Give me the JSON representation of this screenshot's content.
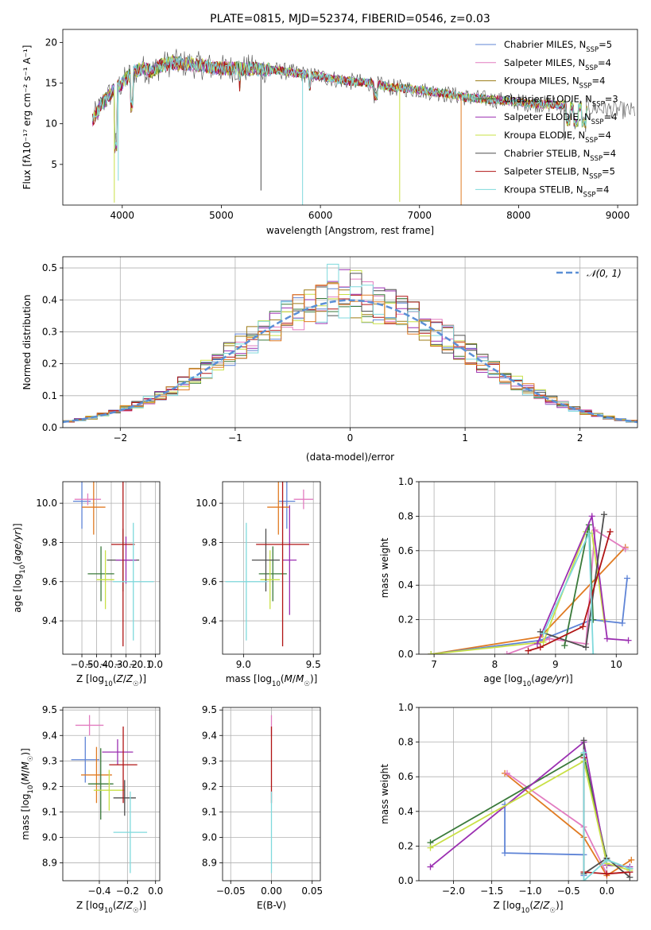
{
  "colors": {
    "cm_blue": "#5f84d6",
    "sm_pink": "#e27cc0",
    "km_olive": "#9c7b16",
    "ce_green": "#3a7a3a",
    "se_purple": "#9b2fb1",
    "ke_yellow": "#c9e046",
    "cs_gray": "#4f4f4f",
    "ss_red": "#b01414",
    "ks_cyan": "#7fd9dc",
    "orange": "#e07b23",
    "normal": "#5b8fd6",
    "grid": "#b0b0b0"
  },
  "chart_data": [
    {
      "id": "spectrum",
      "type": "line",
      "title": "PLATE=0815, MJD=52374, FIBERID=0546, z=0.03",
      "xlabel": "wavelength [Angstrom, rest frame]",
      "ylabel": "Flux [fλ10⁻¹⁷ erg cm⁻² s⁻¹ A⁻¹]",
      "xlim": [
        3400,
        9200
      ],
      "ylim": [
        0,
        21.6
      ],
      "xticks": [
        4000,
        5000,
        6000,
        7000,
        8000,
        9000
      ],
      "yticks": [
        5,
        10,
        15,
        20
      ],
      "grid": false,
      "legend_position": "top-right",
      "continuum": {
        "x": [
          3700,
          3800,
          3900,
          4000,
          4100,
          4200,
          4300,
          4400,
          4500,
          4700,
          5000,
          5300,
          5600,
          5900,
          6100,
          6300,
          6500,
          6700,
          6900,
          7100,
          7300,
          7500,
          7700,
          7900,
          8100,
          8300,
          8500,
          8700,
          8900,
          9100
        ],
        "y": [
          10.5,
          12.5,
          14.0,
          15.0,
          16.3,
          16.8,
          16.5,
          17.2,
          17.5,
          17.3,
          16.8,
          16.8,
          16.5,
          16.0,
          15.6,
          15.2,
          15.0,
          14.5,
          14.3,
          14.0,
          13.6,
          13.2,
          13.0,
          12.8,
          12.5,
          12.4,
          12.2,
          12.0,
          11.8,
          11.6
        ]
      },
      "series": [
        {
          "name": "Chabrier MILES, N",
          "sub": "SSP",
          "tail": "=5",
          "color": "#5f84d6"
        },
        {
          "name": "Salpeter MILES, N",
          "sub": "SSP",
          "tail": "=4",
          "color": "#e27cc0"
        },
        {
          "name": "Kroupa MILES, N",
          "sub": "SSP",
          "tail": "=4",
          "color": "#9c7b16"
        },
        {
          "name": "Chabrier ELODIE, N",
          "sub": "SSP",
          "tail": "=3",
          "color": "#3a7a3a"
        },
        {
          "name": "Salpeter ELODIE, N",
          "sub": "SSP",
          "tail": "=4",
          "color": "#9b2fb1"
        },
        {
          "name": "Kroupa ELODIE, N",
          "sub": "SSP",
          "tail": "=4",
          "color": "#c9e046"
        },
        {
          "name": "Chabrier STELIB, N",
          "sub": "SSP",
          "tail": "=4",
          "color": "#4f4f4f"
        },
        {
          "name": "Salpeter STELIB, N",
          "sub": "SSP",
          "tail": "=5",
          "color": "#b01414"
        },
        {
          "name": "Kroupa STELIB, N",
          "sub": "SSP",
          "tail": "=4",
          "color": "#7fd9dc"
        }
      ]
    },
    {
      "id": "residuals",
      "type": "line",
      "xlabel": "(data-model)/error",
      "ylabel": "Normed distribution",
      "xlim": [
        -2.5,
        2.5
      ],
      "ylim": [
        0,
        0.535
      ],
      "xticks": [
        -2,
        -1,
        0,
        1,
        2
      ],
      "yticks": [
        0.0,
        0.1,
        0.2,
        0.3,
        0.4,
        0.5
      ],
      "grid": true,
      "legend_position": "top-right",
      "normal_label": "𝒩(0, 1)",
      "bin_width": 0.1
    },
    {
      "id": "age_vs_Z",
      "type": "scatter",
      "xlabel": "Z [log10(Z/Z☉)]",
      "ylabel": "age [log10(age/yr)]",
      "xlim": [
        -0.63,
        0.03
      ],
      "ylim": [
        9.23,
        10.11
      ],
      "xticks": [
        -0.5,
        -0.4,
        -0.3,
        -0.2,
        -0.1,
        0.0
      ],
      "yticks": [
        9.4,
        9.6,
        9.8,
        10.0
      ],
      "grid": true,
      "points": [
        {
          "x": -0.5,
          "y": 10.01,
          "xerr": 0.06,
          "yerr": 0.14,
          "color": "#5f84d6"
        },
        {
          "x": -0.46,
          "y": 10.02,
          "xerr": 0.09,
          "yerr": 0.03,
          "color": "#e27cc0"
        },
        {
          "x": -0.42,
          "y": 9.98,
          "xerr": 0.08,
          "yerr": 0.14,
          "color": "#e07b23"
        },
        {
          "x": -0.37,
          "y": 9.64,
          "xerr": 0.09,
          "yerr": 0.14,
          "color": "#3a7a3a"
        },
        {
          "x": -0.34,
          "y": 9.61,
          "xerr": 0.06,
          "yerr": 0.15,
          "color": "#c9e046"
        },
        {
          "x": -0.22,
          "y": 9.71,
          "xerr": 0.11,
          "yerr": 0.16,
          "color": "#4f4f4f"
        },
        {
          "x": -0.2,
          "y": 9.71,
          "xerr": 0.07,
          "yerr": 0.12,
          "color": "#9b2fb1"
        },
        {
          "x": -0.22,
          "y": 9.79,
          "xerr": 0.08,
          "yerr": 0.52,
          "color": "#b01414"
        },
        {
          "x": -0.15,
          "y": 9.6,
          "xerr": 0.14,
          "yerr": 0.3,
          "color": "#7fd9dc"
        }
      ]
    },
    {
      "id": "age_vs_mass",
      "type": "scatter",
      "xlabel": "mass [log10(M/M☉)]",
      "ylabel": "",
      "xlim": [
        8.85,
        9.55
      ],
      "ylim": [
        9.23,
        10.11
      ],
      "xticks": [
        9.0,
        9.5
      ],
      "yticks": [
        9.4,
        9.6,
        9.8,
        10.0
      ],
      "grid": true,
      "points": [
        {
          "x": 9.31,
          "y": 10.01,
          "xerr": 0.06,
          "yerr": 0.14,
          "color": "#5f84d6"
        },
        {
          "x": 9.43,
          "y": 10.02,
          "xerr": 0.07,
          "yerr": 0.05,
          "color": "#e27cc0"
        },
        {
          "x": 9.25,
          "y": 9.98,
          "xerr": 0.08,
          "yerr": 0.14,
          "color": "#e07b23"
        },
        {
          "x": 9.21,
          "y": 9.64,
          "xerr": 0.1,
          "yerr": 0.14,
          "color": "#3a7a3a"
        },
        {
          "x": 9.19,
          "y": 9.61,
          "xerr": 0.07,
          "yerr": 0.15,
          "color": "#c9e046"
        },
        {
          "x": 9.16,
          "y": 9.71,
          "xerr": 0.1,
          "yerr": 0.16,
          "color": "#4f4f4f"
        },
        {
          "x": 9.33,
          "y": 9.71,
          "xerr": 0.05,
          "yerr": 0.28,
          "color": "#9b2fb1"
        },
        {
          "x": 9.28,
          "y": 9.79,
          "xerr": 0.19,
          "yerr": 0.52,
          "color": "#b01414"
        },
        {
          "x": 9.02,
          "y": 9.6,
          "xerr": 0.15,
          "yerr": 0.3,
          "color": "#7fd9dc"
        }
      ]
    },
    {
      "id": "weight_vs_age",
      "type": "line",
      "xlabel": "age  [log10(age/yr)]",
      "ylabel": "mass weight",
      "xlim": [
        6.75,
        10.35
      ],
      "ylim": [
        0,
        1.0
      ],
      "xticks": [
        7,
        8,
        9,
        10
      ],
      "yticks": [
        0.0,
        0.2,
        0.4,
        0.6,
        0.8,
        1.0
      ],
      "grid": true,
      "series": [
        {
          "color": "#e07b23",
          "x": [
            6.95,
            8.75,
            10.15
          ],
          "y": [
            0.0,
            0.1,
            0.62
          ]
        },
        {
          "color": "#5f84d6",
          "x": [
            6.95,
            8.75,
            9.6,
            10.1,
            10.18
          ],
          "y": [
            0.0,
            0.08,
            0.2,
            0.18,
            0.44
          ]
        },
        {
          "color": "#e27cc0",
          "x": [
            8.2,
            8.9,
            9.5,
            9.65,
            10.15
          ],
          "y": [
            0.0,
            0.09,
            0.06,
            0.72,
            0.61
          ]
        },
        {
          "color": "#c9e046",
          "x": [
            6.95,
            8.8,
            9.5,
            9.6,
            9.8
          ],
          "y": [
            0.0,
            0.07,
            0.71,
            0.7,
            0.2
          ]
        },
        {
          "color": "#3a7a3a",
          "x": [
            9.15,
            9.55,
            9.62
          ],
          "y": [
            0.05,
            0.75,
            0.2
          ]
        },
        {
          "color": "#9b2fb1",
          "x": [
            8.7,
            9.6,
            9.85,
            10.2
          ],
          "y": [
            0.06,
            0.8,
            0.09,
            0.08
          ]
        },
        {
          "color": "#4f4f4f",
          "x": [
            8.75,
            9.5,
            9.8
          ],
          "y": [
            0.13,
            0.04,
            0.81
          ]
        },
        {
          "color": "#b01414",
          "x": [
            8.55,
            8.75,
            9.45,
            9.9
          ],
          "y": [
            0.02,
            0.04,
            0.16,
            0.71
          ]
        },
        {
          "color": "#7fd9dc",
          "x": [
            8.8,
            9.55,
            9.62
          ],
          "y": [
            0.12,
            0.7,
            0.0
          ]
        }
      ]
    },
    {
      "id": "mass_vs_Z",
      "type": "scatter",
      "xlabel": "Z [log10(Z/Z☉)]",
      "ylabel": "mass [log10(M/M☉)]",
      "xlim": [
        -0.66,
        0.03
      ],
      "ylim": [
        8.83,
        9.51
      ],
      "xticks": [
        -0.4,
        -0.2,
        0.0
      ],
      "yticks": [
        8.9,
        9.0,
        9.1,
        9.2,
        9.3,
        9.4,
        9.5
      ],
      "grid": true,
      "points": [
        {
          "x": -0.5,
          "y": 9.305,
          "xerr": 0.1,
          "yerr": 0.09,
          "color": "#5f84d6"
        },
        {
          "x": -0.47,
          "y": 9.44,
          "xerr": 0.1,
          "yerr": 0.04,
          "color": "#e27cc0"
        },
        {
          "x": -0.42,
          "y": 9.245,
          "xerr": 0.11,
          "yerr": 0.11,
          "color": "#e07b23"
        },
        {
          "x": -0.39,
          "y": 9.21,
          "xerr": 0.09,
          "yerr": 0.14,
          "color": "#3a7a3a"
        },
        {
          "x": -0.33,
          "y": 9.185,
          "xerr": 0.11,
          "yerr": 0.08,
          "color": "#c9e046"
        },
        {
          "x": -0.27,
          "y": 9.335,
          "xerr": 0.11,
          "yerr": 0.05,
          "color": "#9b2fb1"
        },
        {
          "x": -0.22,
          "y": 9.155,
          "xerr": 0.08,
          "yerr": 0.07,
          "color": "#4f4f4f"
        },
        {
          "x": -0.23,
          "y": 9.285,
          "xerr": 0.1,
          "yerr": 0.15,
          "color": "#b01414"
        },
        {
          "x": -0.18,
          "y": 9.02,
          "xerr": 0.12,
          "yerr": 0.16,
          "color": "#7fd9dc"
        }
      ]
    },
    {
      "id": "mass_vs_ebv",
      "type": "scatter",
      "xlabel": "E(B-V)",
      "ylabel": "",
      "xlim": [
        -0.06,
        0.06
      ],
      "ylim": [
        8.83,
        9.51
      ],
      "xticks": [
        -0.05,
        0.0,
        0.05
      ],
      "yticks": [
        8.9,
        9.0,
        9.1,
        9.2,
        9.3,
        9.4,
        9.5
      ],
      "grid": true,
      "points": [
        {
          "x": 0.0,
          "y": 9.44,
          "xerr": 0.0,
          "yerr": 0.04,
          "color": "#e27cc0"
        },
        {
          "x": 0.0,
          "y": 9.285,
          "xerr": 0.0,
          "yerr": 0.15,
          "color": "#b01414"
        },
        {
          "x": 0.0,
          "y": 9.02,
          "xerr": 0.0,
          "yerr": 0.16,
          "color": "#7fd9dc"
        }
      ]
    },
    {
      "id": "weight_vs_Z",
      "type": "line",
      "xlabel": "Z [log10(Z/Z☉)]",
      "ylabel": "mass weight",
      "xlim": [
        -2.45,
        0.4
      ],
      "ylim": [
        0,
        1.0
      ],
      "xticks": [
        -2.0,
        -1.5,
        -1.0,
        -0.5,
        0.0
      ],
      "yticks": [
        0.0,
        0.2,
        0.4,
        0.6,
        0.8,
        1.0
      ],
      "grid": true,
      "series": [
        {
          "color": "#e07b23",
          "x": [
            -1.33,
            -0.3,
            0.0,
            0.32
          ],
          "y": [
            0.62,
            0.25,
            0.03,
            0.12
          ]
        },
        {
          "color": "#5f84d6",
          "x": [
            -1.33,
            -1.33,
            -0.3,
            -0.3
          ],
          "y": [
            0.44,
            0.16,
            0.15,
            0.03
          ]
        },
        {
          "color": "#e27cc0",
          "x": [
            -1.3,
            -0.3,
            0.0,
            0.3
          ],
          "y": [
            0.62,
            0.31,
            0.04,
            0.05
          ]
        },
        {
          "color": "#3a7a3a",
          "x": [
            -2.3,
            -0.3,
            0.0,
            0.3
          ],
          "y": [
            0.22,
            0.73,
            0.12,
            0.07
          ]
        },
        {
          "color": "#9b2fb1",
          "x": [
            -2.3,
            -0.3,
            0.0,
            0.3
          ],
          "y": [
            0.08,
            0.8,
            0.09,
            0.08
          ]
        },
        {
          "color": "#c9e046",
          "x": [
            -2.3,
            -0.3,
            0.0,
            0.3
          ],
          "y": [
            0.19,
            0.69,
            0.1,
            0.06
          ]
        },
        {
          "color": "#4f4f4f",
          "x": [
            -0.3,
            -0.3,
            0.0,
            0.3
          ],
          "y": [
            0.81,
            0.04,
            0.13,
            0.02
          ]
        },
        {
          "color": "#b01414",
          "x": [
            -0.3,
            -0.3,
            0.0,
            0.3
          ],
          "y": [
            0.71,
            0.05,
            0.04,
            0.05
          ]
        },
        {
          "color": "#7fd9dc",
          "x": [
            -0.3,
            -0.3,
            0.0,
            0.3
          ],
          "y": [
            0.74,
            0.0,
            0.12,
            0.07
          ]
        }
      ]
    }
  ]
}
